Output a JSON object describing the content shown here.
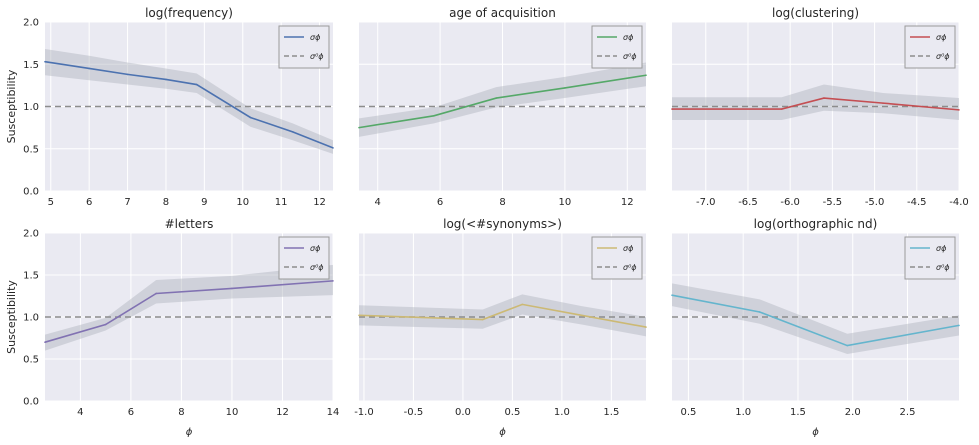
{
  "y_axis_label": "Susceptibility",
  "x_axis_label": "ϕ",
  "legend": {
    "sigma_label": "σϕ",
    "sigma0_label": "σ⁰ϕ"
  },
  "reference_line": {
    "y": 1.0,
    "style": "dashed",
    "color": "#8c8c8c"
  },
  "chart_data": [
    {
      "type": "line",
      "title": "log(frequency)",
      "color": "#4c72b0",
      "xlim": [
        4.85,
        12.35
      ],
      "ylim": [
        0,
        2
      ],
      "xticks": [
        5,
        6,
        7,
        8,
        9,
        10,
        11,
        12
      ],
      "yticks": [
        0.0,
        0.5,
        1.0,
        1.5,
        2.0
      ],
      "x": [
        4.85,
        6.0,
        7.0,
        8.0,
        8.8,
        10.2,
        11.3,
        12.35
      ],
      "y": [
        1.53,
        1.45,
        1.38,
        1.32,
        1.26,
        0.87,
        0.7,
        0.51
      ],
      "band_lower": [
        1.37,
        1.31,
        1.26,
        1.21,
        1.16,
        0.76,
        0.6,
        0.44
      ],
      "band_upper": [
        1.68,
        1.6,
        1.52,
        1.45,
        1.39,
        0.98,
        0.8,
        0.6
      ],
      "legend_position": "top-right"
    },
    {
      "type": "line",
      "title": "age of acquisition",
      "color": "#55a868",
      "xlim": [
        3.4,
        12.6
      ],
      "ylim": [
        0,
        2
      ],
      "xticks": [
        4,
        6,
        8,
        10,
        12
      ],
      "yticks": [
        0.0,
        0.5,
        1.0,
        1.5,
        2.0
      ],
      "x": [
        3.4,
        5.8,
        7.8,
        10.0,
        12.6
      ],
      "y": [
        0.75,
        0.89,
        1.1,
        1.22,
        1.37
      ],
      "band_lower": [
        0.64,
        0.8,
        0.99,
        1.1,
        1.24
      ],
      "band_upper": [
        0.86,
        0.99,
        1.23,
        1.35,
        1.52
      ],
      "legend_position": "top-right"
    },
    {
      "type": "line",
      "title": "log(clustering)",
      "color": "#c44e52",
      "xlim": [
        -7.4,
        -4.0
      ],
      "ylim": [
        0,
        2
      ],
      "xticks": [
        -7.0,
        -6.5,
        -6.0,
        -5.5,
        -5.0,
        -4.5,
        -4.0
      ],
      "yticks": [
        0.0,
        0.5,
        1.0,
        1.5,
        2.0
      ],
      "x": [
        -7.4,
        -6.1,
        -5.6,
        -4.9,
        -4.0
      ],
      "y": [
        0.97,
        0.97,
        1.1,
        1.04,
        0.96
      ],
      "band_lower": [
        0.84,
        0.84,
        0.95,
        0.92,
        0.84
      ],
      "band_upper": [
        1.11,
        1.11,
        1.26,
        1.16,
        1.1
      ],
      "legend_position": "top-right"
    },
    {
      "type": "line",
      "title": "#letters",
      "color": "#8172b2",
      "xlim": [
        2.6,
        14.0
      ],
      "ylim": [
        0,
        2
      ],
      "xticks": [
        4,
        6,
        8,
        10,
        12,
        14
      ],
      "yticks": [
        0.0,
        0.5,
        1.0,
        1.5,
        2.0
      ],
      "x": [
        2.6,
        5.0,
        7.0,
        10.0,
        14.0
      ],
      "y": [
        0.7,
        0.91,
        1.28,
        1.34,
        1.43
      ],
      "band_lower": [
        0.6,
        0.84,
        1.16,
        1.22,
        1.26
      ],
      "band_upper": [
        0.79,
        0.99,
        1.44,
        1.49,
        1.62
      ],
      "legend_position": "top-right"
    },
    {
      "type": "line",
      "title": "log(<#synonyms>)",
      "color": "#ccb974",
      "xlim": [
        -1.05,
        1.85
      ],
      "ylim": [
        0,
        2
      ],
      "xticks": [
        -1.0,
        -0.5,
        0.0,
        0.5,
        1.0,
        1.5
      ],
      "yticks": [
        0.0,
        0.5,
        1.0,
        1.5,
        2.0
      ],
      "x": [
        -1.05,
        0.2,
        0.6,
        1.2,
        1.85
      ],
      "y": [
        1.02,
        0.97,
        1.15,
        1.02,
        0.88
      ],
      "band_lower": [
        0.9,
        0.86,
        1.03,
        0.91,
        0.77
      ],
      "band_upper": [
        1.14,
        1.09,
        1.27,
        1.13,
        1.0
      ],
      "legend_position": "top-right"
    },
    {
      "type": "line",
      "title": "log(orthographic nd)",
      "color": "#64b5cd",
      "xlim": [
        0.35,
        2.97
      ],
      "ylim": [
        0,
        2
      ],
      "xticks": [
        0.5,
        1.0,
        1.5,
        2.0,
        2.5
      ],
      "yticks": [
        0.0,
        0.5,
        1.0,
        1.5,
        2.0
      ],
      "x": [
        0.35,
        1.15,
        1.95,
        2.97
      ],
      "y": [
        1.26,
        1.06,
        0.66,
        0.9
      ],
      "band_lower": [
        1.13,
        0.92,
        0.56,
        0.78
      ],
      "band_upper": [
        1.4,
        1.21,
        0.8,
        1.02
      ],
      "legend_position": "top-right"
    }
  ]
}
